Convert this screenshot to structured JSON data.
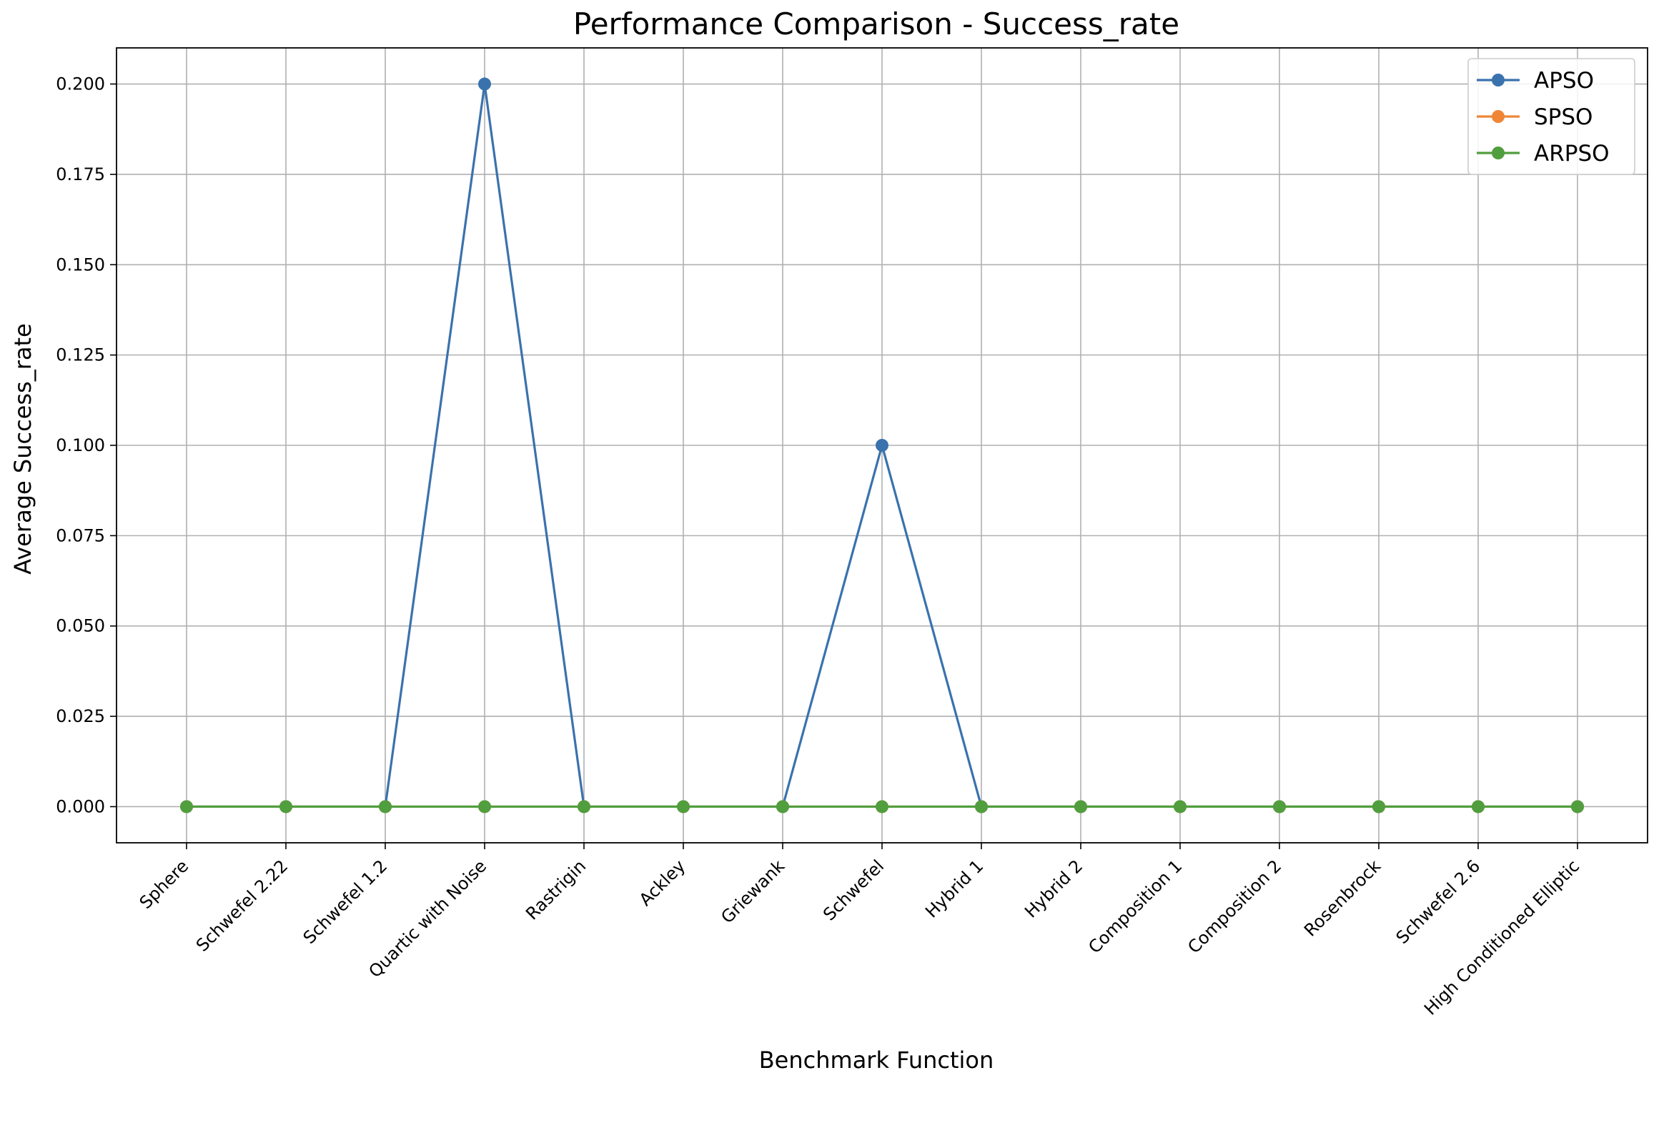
{
  "chart_data": {
    "type": "line",
    "title": "Performance Comparison - Success_rate",
    "xlabel": "Benchmark Function",
    "ylabel": "Average Success_rate",
    "categories": [
      "Sphere",
      "Schwefel 2.22",
      "Schwefel 1.2",
      "Quartic with Noise",
      "Rastrigin",
      "Ackley",
      "Griewank",
      "Schwefel",
      "Hybrid 1",
      "Hybrid 2",
      "Composition 1",
      "Composition 2",
      "Rosenbrock",
      "Schwefel 2.6",
      "High Conditioned Elliptic"
    ],
    "series": [
      {
        "name": "APSO",
        "color": "#3a72ad",
        "values": [
          0,
          0,
          0,
          0.2,
          0,
          0,
          0,
          0.1,
          0,
          0,
          0,
          0,
          0,
          0,
          0
        ]
      },
      {
        "name": "SPSO",
        "color": "#ef8636",
        "values": [
          0,
          0,
          0,
          0,
          0,
          0,
          0,
          0,
          0,
          0,
          0,
          0,
          0,
          0,
          0
        ]
      },
      {
        "name": "ARPSO",
        "color": "#519e3e",
        "values": [
          0,
          0,
          0,
          0,
          0,
          0,
          0,
          0,
          0,
          0,
          0,
          0,
          0,
          0,
          0
        ]
      }
    ],
    "ylim": [
      -0.01,
      0.21
    ],
    "yticks": [
      "0.000",
      "0.025",
      "0.050",
      "0.075",
      "0.100",
      "0.125",
      "0.150",
      "0.175",
      "0.200"
    ],
    "grid": true,
    "legend_position": "top-right"
  }
}
